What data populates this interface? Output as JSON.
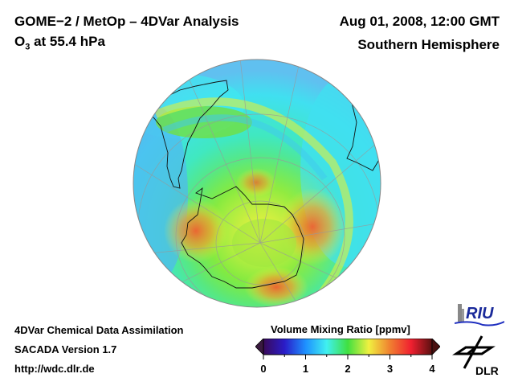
{
  "header": {
    "title": "GOME−2 / MetOp – 4DVar Analysis",
    "species_prefix": "O",
    "species_sub": "3",
    "species_suffix": " at 55.4 hPa",
    "date": "Aug 01, 2008, 12:00 GMT",
    "region": "Southern Hemisphere"
  },
  "footer": {
    "line1": "4DVar Chemical Data Assimilation",
    "line2": "SACADA Version 1.7",
    "line3": "http://wdc.dlr.de"
  },
  "colorbar": {
    "title": "Volume Mixing Ratio [ppmv]",
    "ticks": [
      "0",
      "1",
      "2",
      "3",
      "4"
    ],
    "min": 0,
    "max": 4,
    "colors": [
      "#3a0a5a",
      "#2a1cc8",
      "#1e90ff",
      "#40f0f0",
      "#40e040",
      "#f0f040",
      "#f08030",
      "#f02030",
      "#5a1010"
    ]
  },
  "logos": {
    "riu": "RIU",
    "dlr": "DLR"
  },
  "map": {
    "projection": "orthographic-south-pole",
    "ozone_max_region": "Antarctic vortex edge",
    "icons": [
      "globe-map",
      "coastline",
      "graticule"
    ]
  }
}
